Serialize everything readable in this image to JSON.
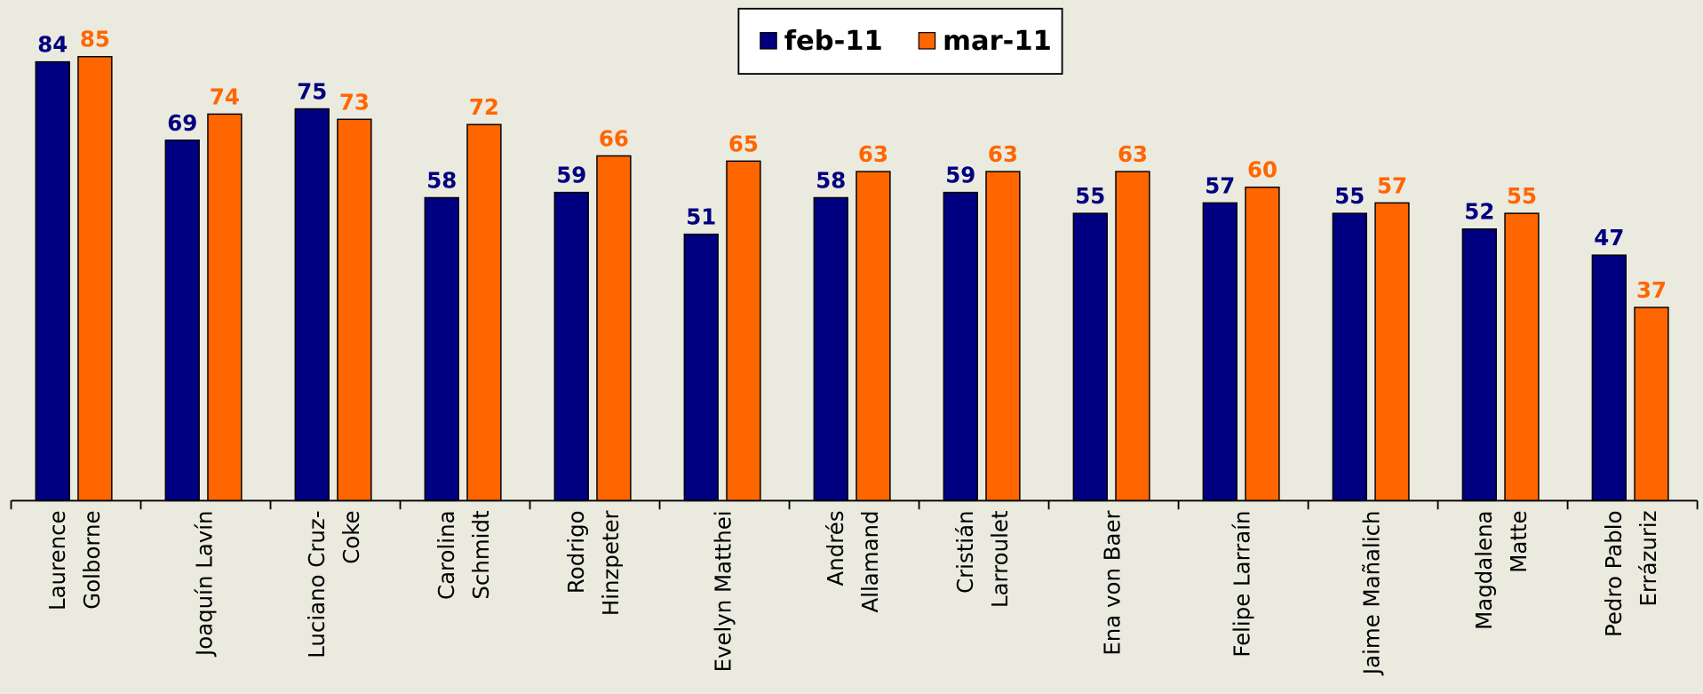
{
  "chart_data": {
    "type": "bar",
    "categories": [
      [
        "Laurence",
        "Golborne"
      ],
      [
        "Joaquín Lavín"
      ],
      [
        "Luciano Cruz-",
        "Coke"
      ],
      [
        "Carolina",
        "Schmidt"
      ],
      [
        "Rodrigo",
        "Hinzpeter"
      ],
      [
        "Evelyn Matthei"
      ],
      [
        "Andrés",
        "Allamand"
      ],
      [
        "Cristián",
        "Larroulet"
      ],
      [
        "Ena von Baer"
      ],
      [
        "Felipe Larraín"
      ],
      [
        "Jaime Mañalich"
      ],
      [
        "Magdalena",
        "Matte"
      ],
      [
        "Pedro Pablo",
        "Errázuriz"
      ]
    ],
    "series": [
      {
        "name": "feb-11",
        "color": "#000080",
        "values": [
          84,
          69,
          75,
          58,
          59,
          51,
          58,
          59,
          55,
          57,
          55,
          52,
          47
        ]
      },
      {
        "name": "mar-11",
        "color": "#ff6600",
        "values": [
          85,
          74,
          73,
          72,
          66,
          65,
          63,
          63,
          63,
          60,
          57,
          55,
          37
        ]
      }
    ],
    "legend": "top"
  }
}
